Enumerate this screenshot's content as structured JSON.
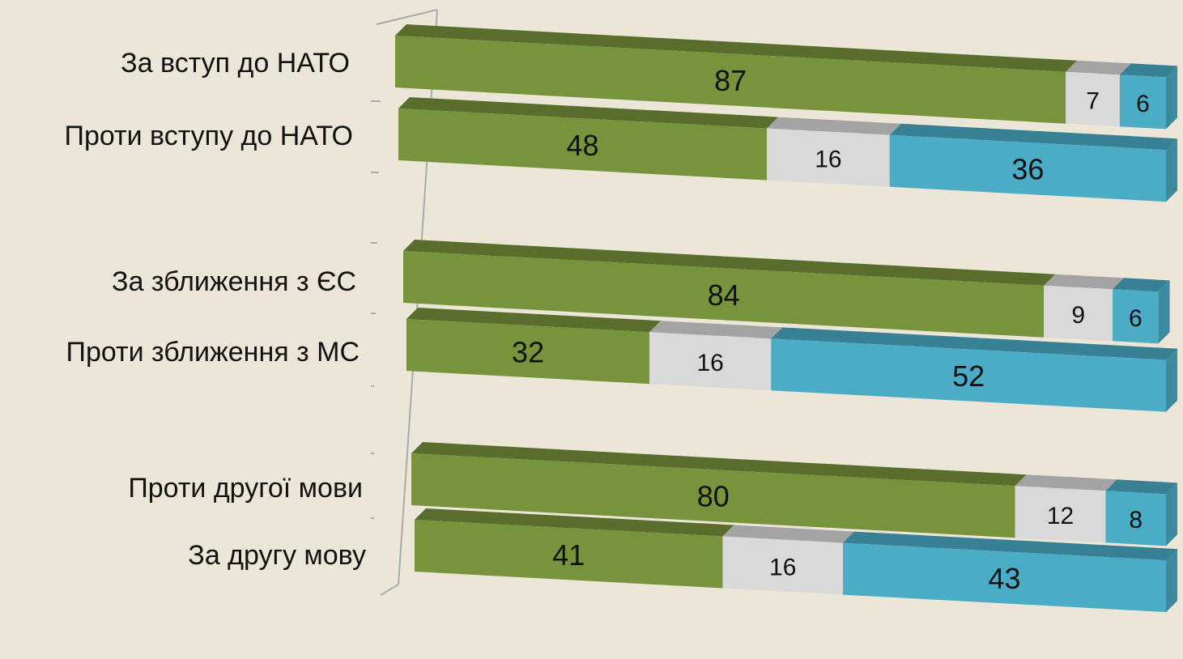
{
  "chart_data": {
    "type": "bar3d-stacked-horizontal",
    "categories": [
      "За вступ до НАТО",
      "Проти вступу до НАТО",
      "За зближення з ЄС",
      "Проти зближення з МС",
      "Проти другої мови",
      "За другу мову"
    ],
    "xlim": [
      0,
      100
    ],
    "series": [
      {
        "color": "#77933c",
        "values": [
          87,
          48,
          84,
          32,
          80,
          41
        ]
      },
      {
        "color": "#d9d9d9",
        "values": [
          7,
          16,
          9,
          16,
          12,
          16
        ]
      },
      {
        "color": "#4bacc6",
        "values": [
          6,
          36,
          6,
          52,
          8,
          43
        ]
      }
    ]
  }
}
